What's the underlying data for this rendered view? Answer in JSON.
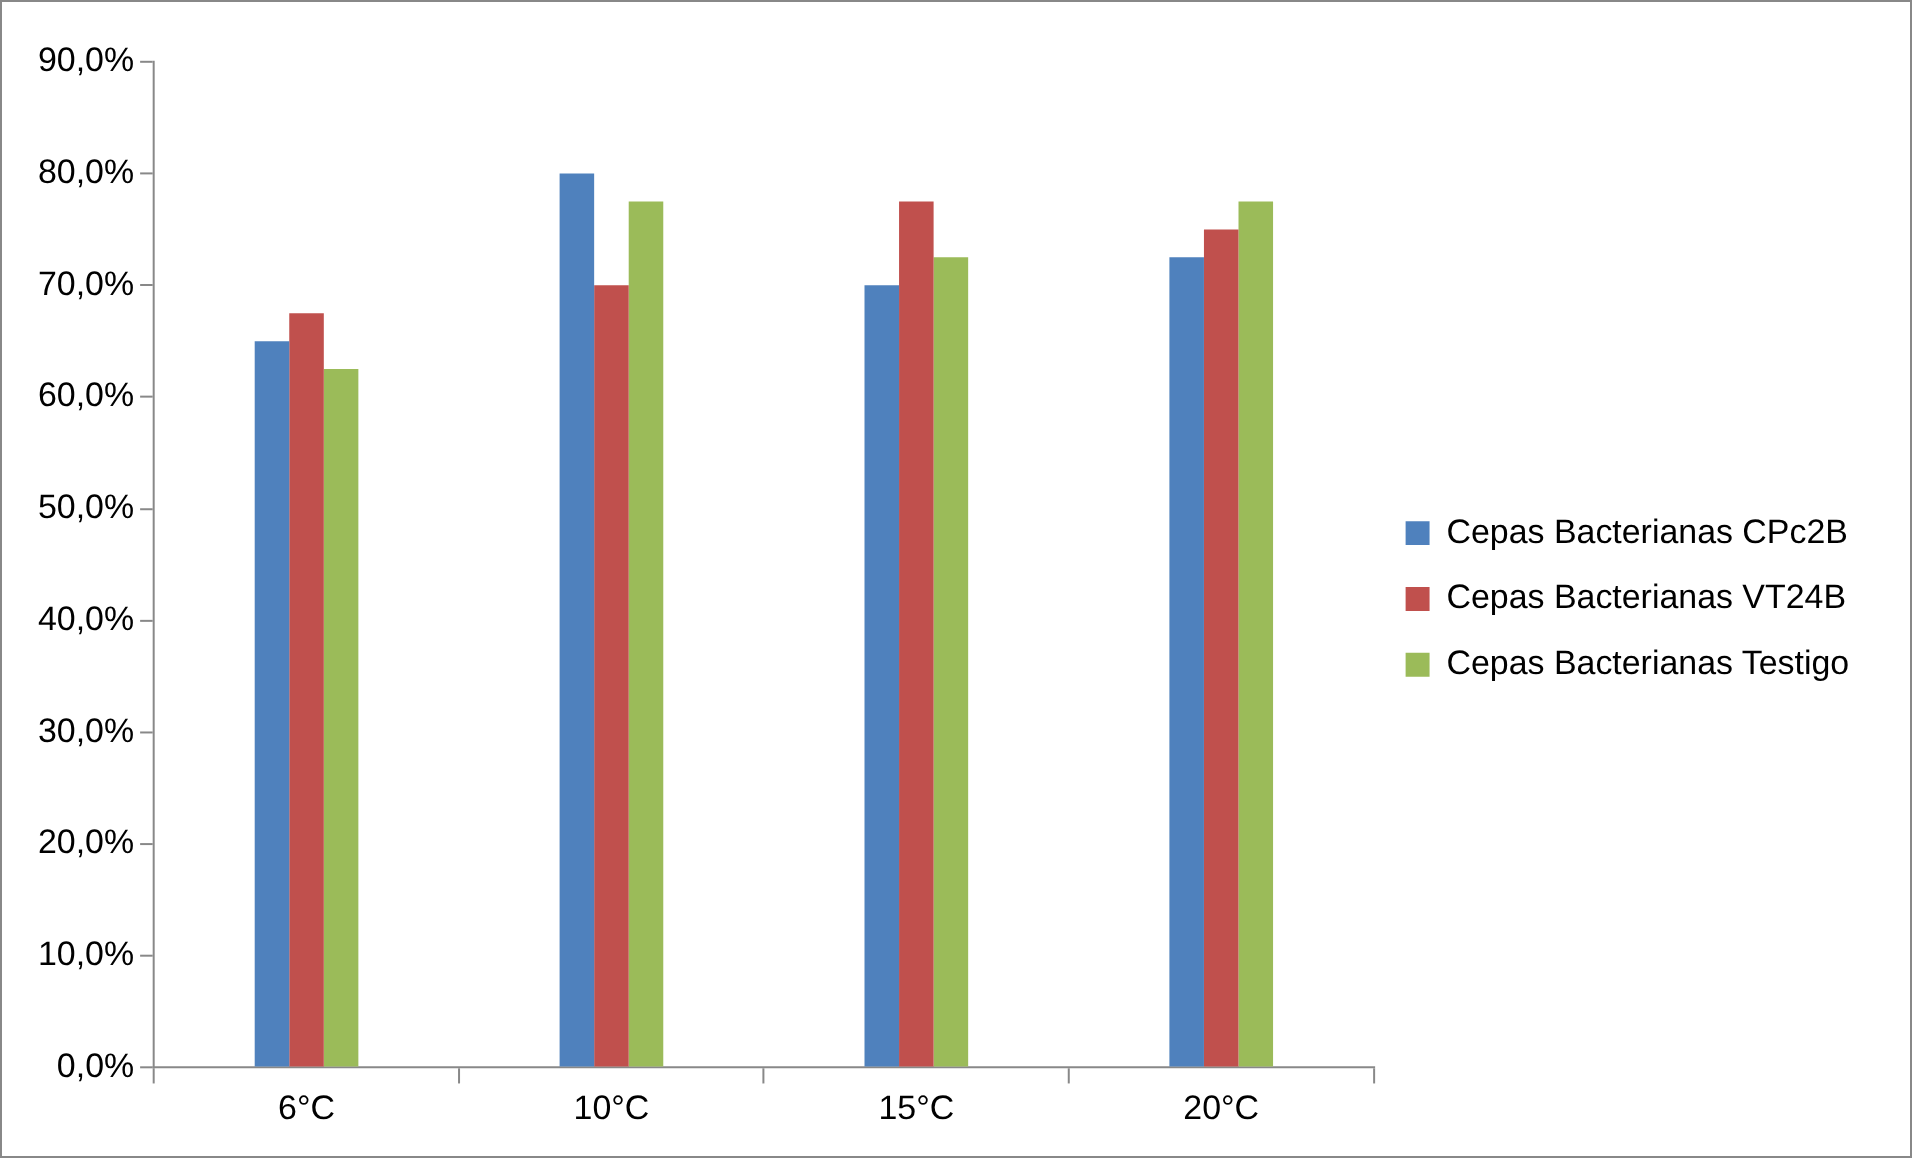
{
  "chart_data": {
    "type": "bar",
    "categories": [
      "6°C",
      "10°C",
      "15°C",
      "20°C"
    ],
    "series": [
      {
        "name": "Cepas Bacterianas CPc2B",
        "color": "#4f81bd",
        "values": [
          65,
          80,
          70,
          72.5
        ]
      },
      {
        "name": "Cepas Bacterianas VT24B",
        "color": "#c0504d",
        "values": [
          67.5,
          70,
          77.5,
          75
        ]
      },
      {
        "name": "Cepas Bacterianas Testigo",
        "color": "#9bbb59",
        "values": [
          62.5,
          77.5,
          72.5,
          77.5
        ]
      }
    ],
    "ylim": [
      0,
      90
    ],
    "yticks": [
      {
        "value": 0,
        "label": "0,0%"
      },
      {
        "value": 10,
        "label": "10,0%"
      },
      {
        "value": 20,
        "label": "20,0%"
      },
      {
        "value": 30,
        "label": "30,0%"
      },
      {
        "value": 40,
        "label": "40,0%"
      },
      {
        "value": 50,
        "label": "50,0%"
      },
      {
        "value": 60,
        "label": "60,0%"
      },
      {
        "value": 70,
        "label": "70,0%"
      },
      {
        "value": 80,
        "label": "80,0%"
      },
      {
        "value": 90,
        "label": "90,0%"
      }
    ],
    "grid": false,
    "legend": "right"
  }
}
